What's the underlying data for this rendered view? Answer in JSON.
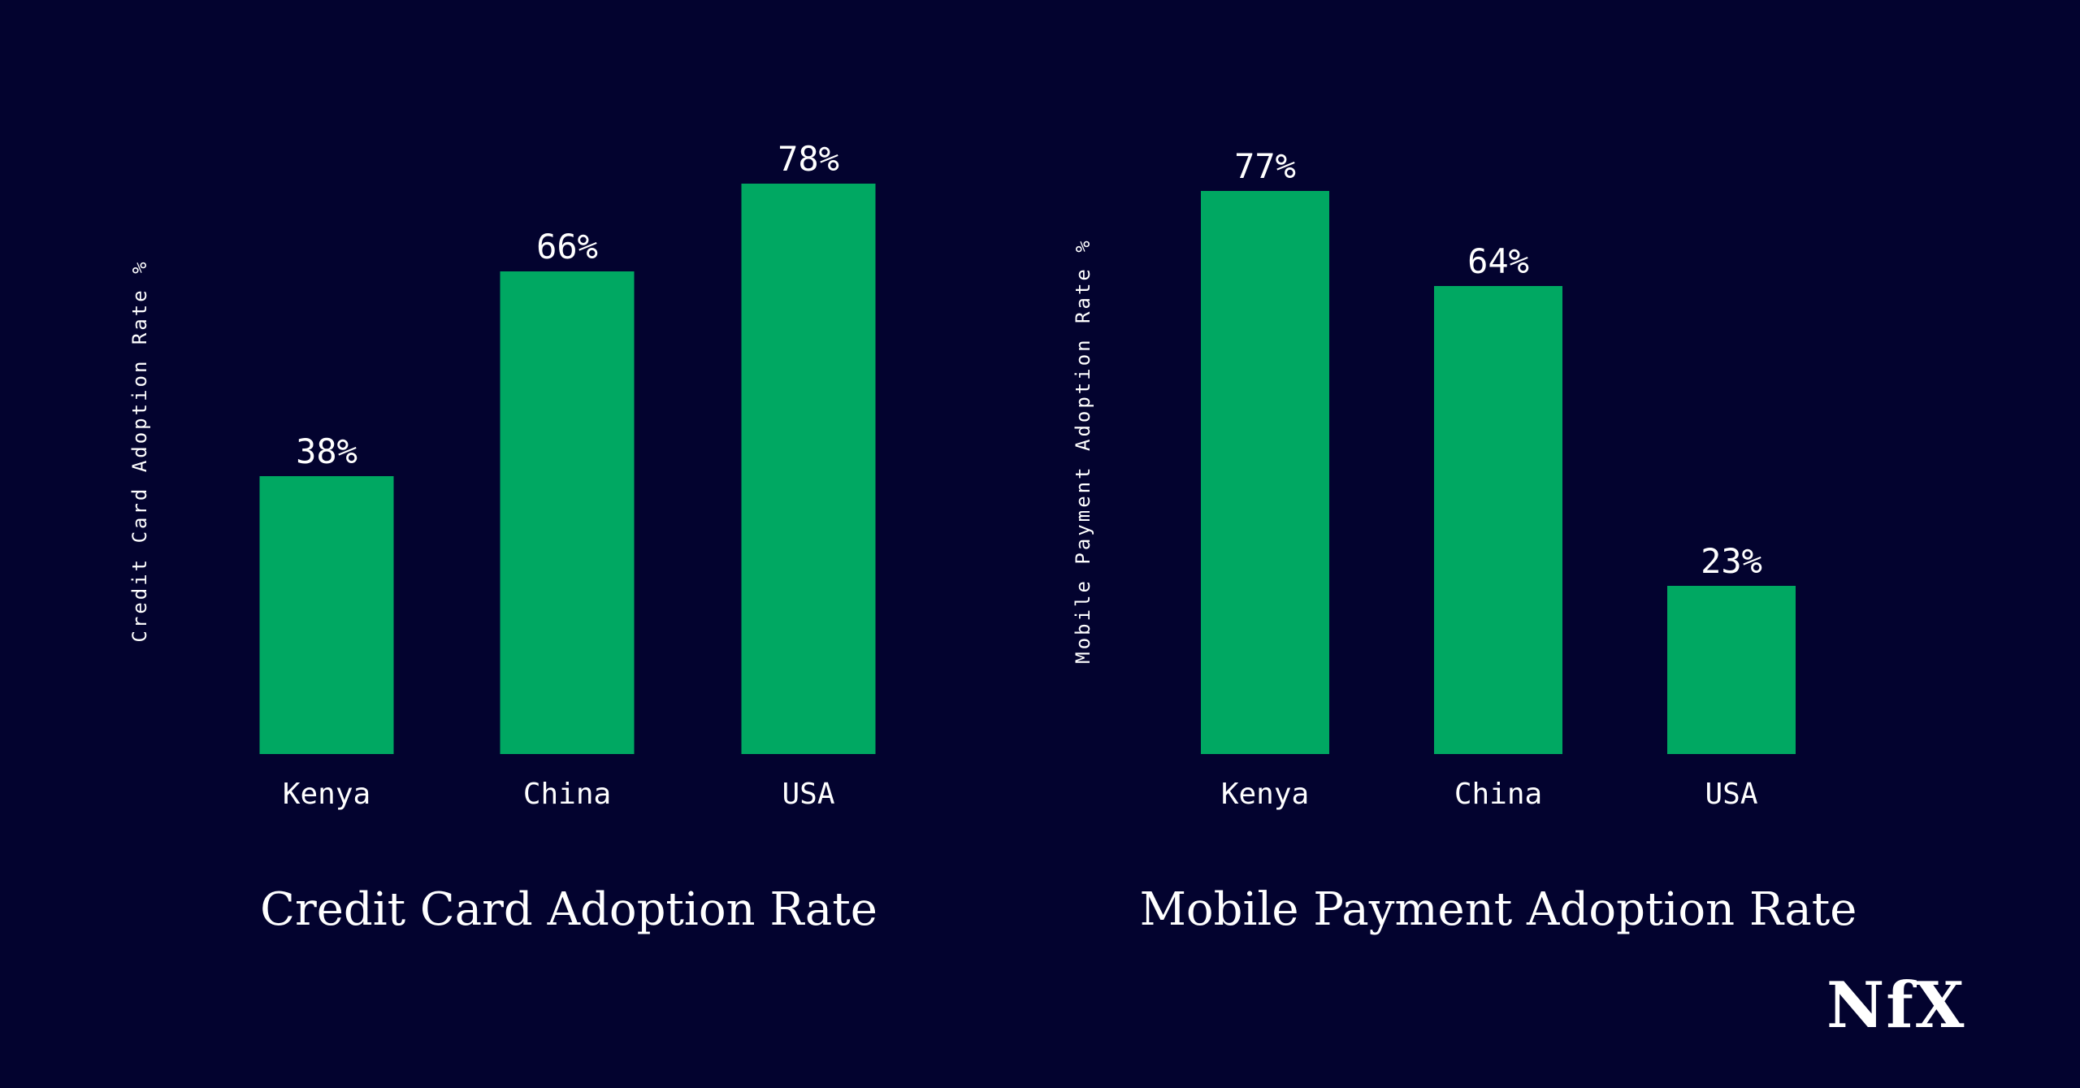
{
  "colors": {
    "background": "#03032f",
    "bar": "#00a862",
    "text": "#ffffff"
  },
  "logo": {
    "text": "NfX"
  },
  "chart_data": [
    {
      "type": "bar",
      "title": "Credit Card Adoption Rate",
      "ylabel": "Credit Card Adoption Rate %",
      "xlabel": "",
      "categories": [
        "Kenya",
        "China",
        "USA"
      ],
      "values": [
        38,
        66,
        78
      ],
      "value_labels": [
        "38%",
        "66%",
        "78%"
      ],
      "ylim": [
        0,
        100
      ],
      "grid": false,
      "legend": "none"
    },
    {
      "type": "bar",
      "title": "Mobile Payment Adoption Rate",
      "ylabel": "Mobile Payment Adoption Rate %",
      "xlabel": "",
      "categories": [
        "Kenya",
        "China",
        "USA"
      ],
      "values": [
        77,
        64,
        23
      ],
      "value_labels": [
        "77%",
        "64%",
        "23%"
      ],
      "ylim": [
        0,
        100
      ],
      "grid": false,
      "legend": "none"
    }
  ]
}
